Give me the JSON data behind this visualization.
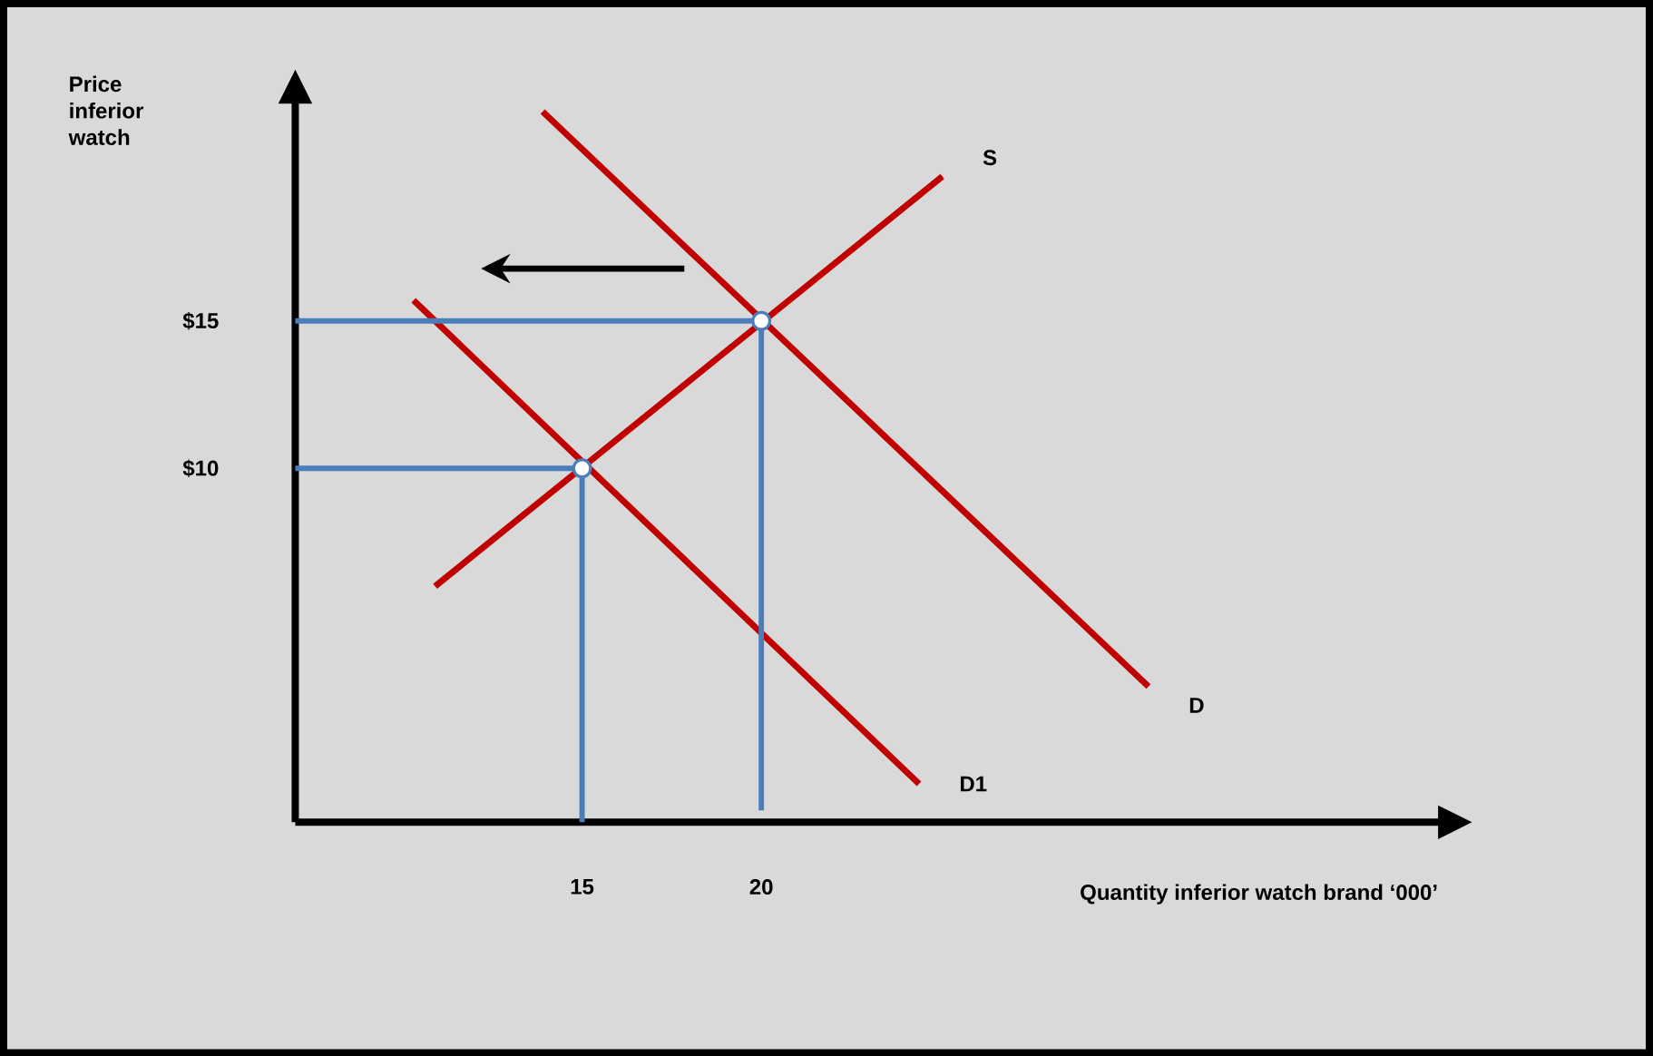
{
  "chart_data": {
    "type": "line",
    "xlabel": "Quantity inferior watch brand ‘000’",
    "ylabel": "Price inferior watch",
    "xlim": [
      7,
      39
    ],
    "ylim": [
      -2,
      22.5
    ],
    "xticks": [
      15,
      20
    ],
    "yticks": [
      {
        "value": 10,
        "label": "$10"
      },
      {
        "value": 15,
        "label": "$15"
      }
    ],
    "grid": false,
    "legend": false,
    "series": [
      {
        "name": "S",
        "color": "#c00000",
        "x": [
          10.9,
          25.05
        ],
        "values": [
          6.0,
          19.9
        ]
      },
      {
        "name": "D",
        "color": "#c00000",
        "x": [
          13.9,
          30.8
        ],
        "values": [
          22.1,
          2.6
        ]
      },
      {
        "name": "D1",
        "color": "#c00000",
        "x": [
          10.3,
          24.4
        ],
        "values": [
          15.7,
          -0.7
        ]
      },
      {
        "color": "#4a7ebb",
        "x": [
          7,
          20,
          20
        ],
        "values": [
          15,
          15,
          -1.6
        ]
      },
      {
        "color": "#4a7ebb",
        "x": [
          7,
          15,
          15
        ],
        "values": [
          10,
          10,
          -2
        ]
      },
      {
        "type": "scatter",
        "marker": "circle",
        "color": "#4a7ebb",
        "x": [
          15,
          20
        ],
        "values": [
          10,
          15
        ]
      }
    ]
  }
}
